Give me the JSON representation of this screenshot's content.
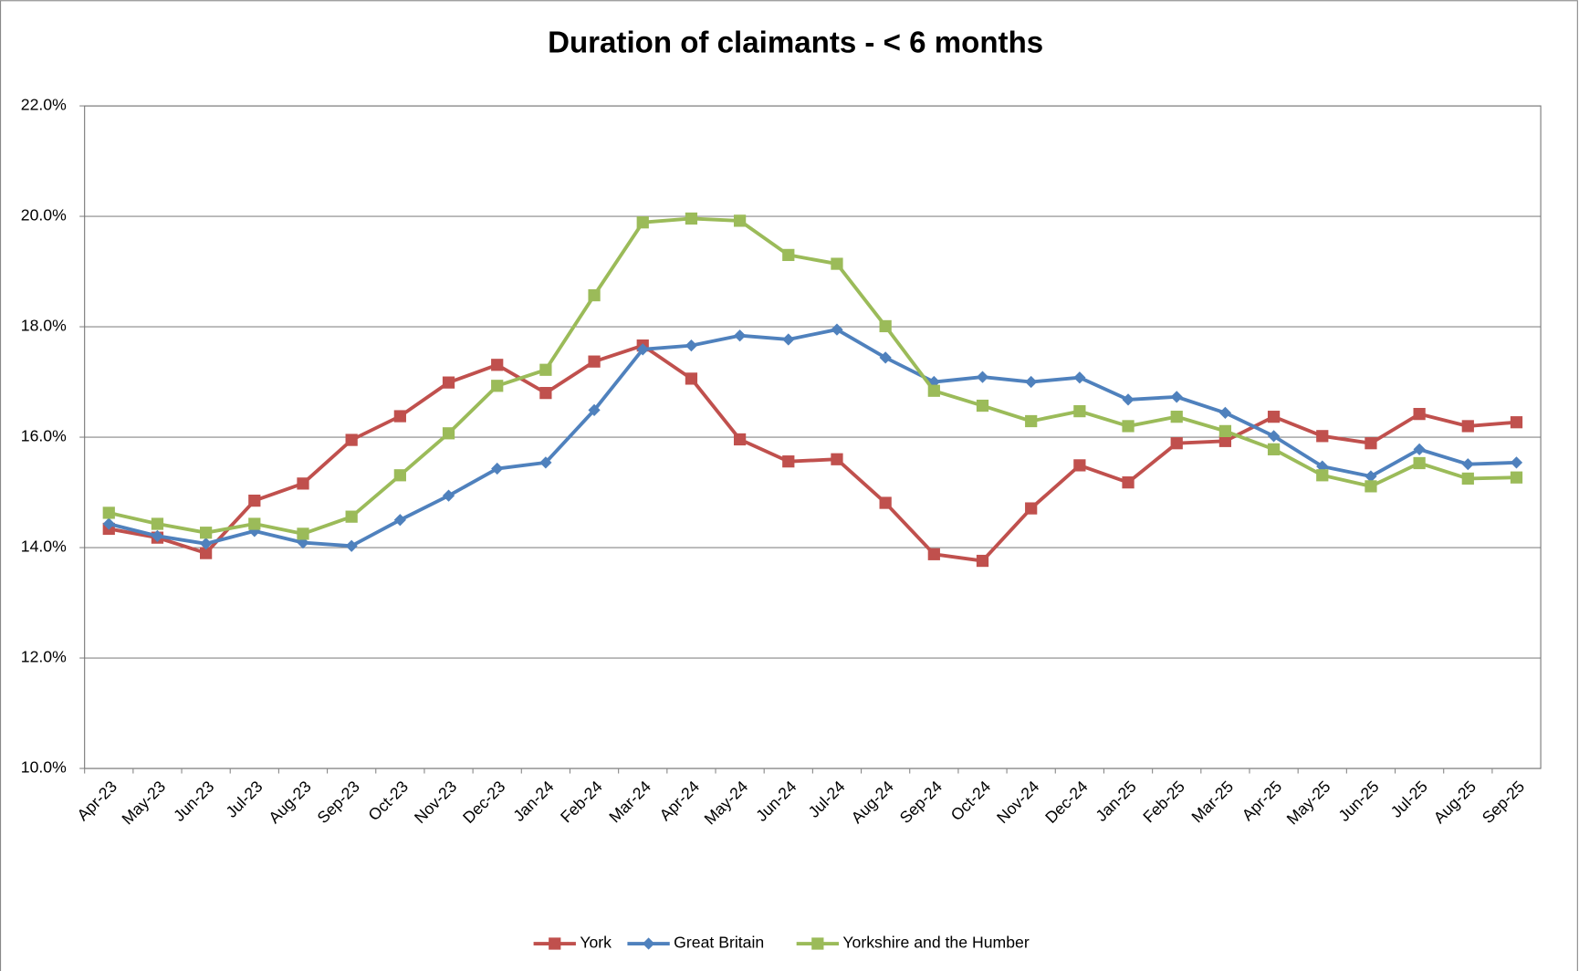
{
  "chart_data": {
    "type": "line",
    "title": "Duration of claimants - < 6 months",
    "categories": [
      "Apr-23",
      "May-23",
      "Jun-23",
      "Jul-23",
      "Aug-23",
      "Sep-23",
      "Oct-23",
      "Nov-23",
      "Dec-23",
      "Jan-24",
      "Feb-24",
      "Mar-24",
      "Apr-24",
      "May-24",
      "Jun-24",
      "Jul-24",
      "Aug-24",
      "Sep-24",
      "Oct-24",
      "Nov-24",
      "Dec-24",
      "Jan-25",
      "Feb-25",
      "Mar-25",
      "Apr-25",
      "May-25",
      "Jun-25",
      "Jul-25",
      "Aug-25",
      "Sep-25"
    ],
    "series": [
      {
        "name": "York",
        "color": "#c0504d",
        "marker": "square",
        "values": [
          14.34,
          14.18,
          13.9,
          14.85,
          15.16,
          15.95,
          16.38,
          16.99,
          17.31,
          16.8,
          17.37,
          17.66,
          17.06,
          15.96,
          15.56,
          15.6,
          14.81,
          13.88,
          13.76,
          14.71,
          15.49,
          15.18,
          15.89,
          15.93,
          16.37,
          16.02,
          15.89,
          16.42,
          16.2,
          16.27
        ]
      },
      {
        "name": "Great Britain",
        "color": "#4f81bd",
        "marker": "diamond",
        "values": [
          14.43,
          14.21,
          14.07,
          14.3,
          14.09,
          14.03,
          14.5,
          14.94,
          15.43,
          15.54,
          16.49,
          17.59,
          17.66,
          17.84,
          17.77,
          17.95,
          17.44,
          17.0,
          17.09,
          17.0,
          17.08,
          16.68,
          16.73,
          16.44,
          16.02,
          15.47,
          15.29,
          15.78,
          15.51,
          15.54
        ]
      },
      {
        "name": "Yorkshire and the Humber",
        "color": "#9bbb59",
        "marker": "square",
        "values": [
          14.63,
          14.43,
          14.27,
          14.43,
          14.25,
          14.56,
          15.31,
          16.07,
          16.93,
          17.22,
          18.57,
          19.89,
          19.96,
          19.92,
          19.3,
          19.14,
          18.01,
          16.84,
          16.57,
          16.29,
          16.47,
          16.2,
          16.37,
          16.11,
          15.78,
          15.31,
          15.11,
          15.53,
          15.25,
          15.27
        ]
      }
    ],
    "ylim": [
      10,
      22
    ],
    "yticks": [
      {
        "value": 10,
        "label": "10.0%"
      },
      {
        "value": 12,
        "label": "12.0%"
      },
      {
        "value": 14,
        "label": "14.0%"
      },
      {
        "value": 16,
        "label": "16.0%"
      },
      {
        "value": 18,
        "label": "18.0%"
      },
      {
        "value": 20,
        "label": "20.0%"
      },
      {
        "value": 22,
        "label": "22.0%"
      }
    ],
    "grid": true,
    "legend": "bottom"
  }
}
